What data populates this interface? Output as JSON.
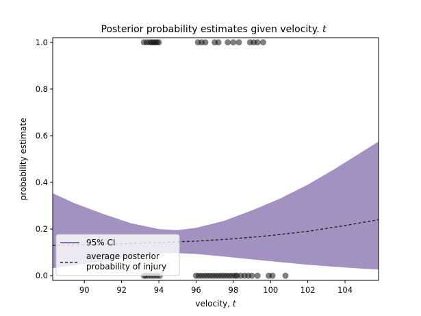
{
  "chart_data": {
    "type": "line",
    "title_prefix": "Posterior probability estimates given velocity. ",
    "title_var": "t",
    "xlabel_prefix": "velocity, ",
    "xlabel_var": "t",
    "ylabel": "probability estimate",
    "xlim": [
      88.3,
      105.8
    ],
    "ylim": [
      -0.02,
      1.02
    ],
    "xticks": [
      "90",
      "92",
      "94",
      "96",
      "98",
      "100",
      "102",
      "104"
    ],
    "xtick_values": [
      90,
      92,
      94,
      96,
      98,
      100,
      102,
      104
    ],
    "yticks": [
      "0.0",
      "0.2",
      "0.4",
      "0.6",
      "0.8",
      "1.0"
    ],
    "ytick_values": [
      0,
      0.2,
      0.4,
      0.6,
      0.8,
      1.0
    ],
    "grid": false,
    "legend_position": "lower-left",
    "ci_band": {
      "name": "95% CI",
      "color": "#8872b0",
      "x": [
        88.3,
        89.5,
        91.0,
        92.5,
        94.0,
        95.0,
        96.0,
        97.5,
        99.0,
        100.5,
        102.0,
        103.5,
        105.0,
        105.8
      ],
      "upper": [
        0.353,
        0.31,
        0.265,
        0.225,
        0.2,
        0.195,
        0.205,
        0.235,
        0.28,
        0.33,
        0.39,
        0.46,
        0.535,
        0.575
      ],
      "lower": [
        0.032,
        0.045,
        0.062,
        0.08,
        0.095,
        0.097,
        0.093,
        0.082,
        0.07,
        0.058,
        0.047,
        0.038,
        0.03,
        0.026
      ]
    },
    "mean_line": {
      "name_line1": "average posterior",
      "name_line2": "probability of injury",
      "x": [
        88.3,
        90,
        92,
        94,
        96,
        98,
        100,
        102,
        104,
        105.8
      ],
      "y": [
        0.13,
        0.133,
        0.137,
        0.142,
        0.148,
        0.158,
        0.172,
        0.19,
        0.215,
        0.24
      ]
    },
    "observations_y1": [
      93.2,
      93.35,
      93.5,
      93.6,
      93.7,
      93.8,
      93.9,
      94.0,
      96.1,
      96.3,
      96.5,
      97.0,
      97.2,
      97.7,
      98.0,
      98.3,
      98.9,
      99.1,
      99.3,
      99.6
    ],
    "observations_y0": [
      93.2,
      93.3,
      93.45,
      93.6,
      93.75,
      93.9,
      94.05,
      96.0,
      96.15,
      96.3,
      96.45,
      96.6,
      96.75,
      96.9,
      97.05,
      97.2,
      97.35,
      97.5,
      97.65,
      97.8,
      97.95,
      98.1,
      98.2,
      98.4,
      98.6,
      98.8,
      99.0,
      99.3,
      99.9,
      100.1,
      100.8
    ]
  }
}
